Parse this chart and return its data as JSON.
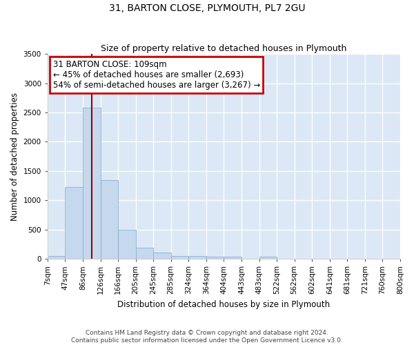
{
  "title": "31, BARTON CLOSE, PLYMOUTH, PL7 2GU",
  "subtitle": "Size of property relative to detached houses in Plymouth",
  "xlabel": "Distribution of detached houses by size in Plymouth",
  "ylabel": "Number of detached properties",
  "footnote1": "Contains HM Land Registry data © Crown copyright and database right 2024.",
  "footnote2": "Contains public sector information licensed under the Open Government Licence v3.0.",
  "bin_labels": [
    "7sqm",
    "47sqm",
    "86sqm",
    "126sqm",
    "166sqm",
    "205sqm",
    "245sqm",
    "285sqm",
    "324sqm",
    "364sqm",
    "404sqm",
    "443sqm",
    "483sqm",
    "522sqm",
    "562sqm",
    "602sqm",
    "641sqm",
    "681sqm",
    "721sqm",
    "760sqm",
    "800sqm"
  ],
  "bar_values": [
    50,
    1230,
    2580,
    1340,
    500,
    190,
    110,
    50,
    50,
    35,
    35,
    0,
    35,
    0,
    0,
    0,
    0,
    0,
    0,
    0
  ],
  "n_bins": 20,
  "bar_color": "#c5d8ee",
  "bar_edgecolor": "#8ab0d4",
  "background_color": "#dce8f5",
  "grid_color": "#ffffff",
  "vline_color": "#990000",
  "vline_bin": 2.5,
  "annotation_text": "31 BARTON CLOSE: 109sqm\n← 45% of detached houses are smaller (2,693)\n54% of semi-detached houses are larger (3,267) →",
  "annotation_box_color": "#cc0000",
  "ylim": [
    0,
    3500
  ],
  "yticks": [
    0,
    500,
    1000,
    1500,
    2000,
    2500,
    3000,
    3500
  ],
  "title_fontsize": 10,
  "subtitle_fontsize": 9,
  "xlabel_fontsize": 8.5,
  "ylabel_fontsize": 8.5,
  "tick_fontsize": 7.5,
  "annot_fontsize": 8.5,
  "footnote_fontsize": 6.5
}
